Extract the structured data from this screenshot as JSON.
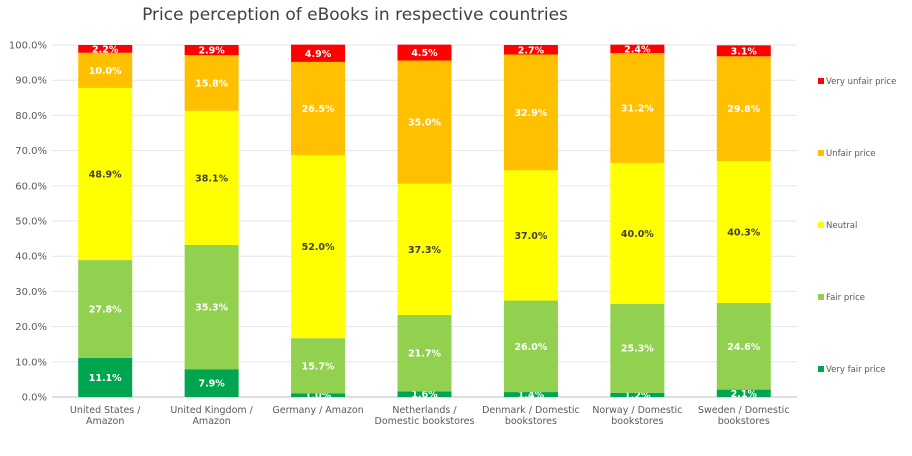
{
  "chart_data": {
    "type": "bar",
    "stacked": true,
    "title": "Price perception of eBooks in respective countries",
    "xlabel": "",
    "ylabel": "",
    "ylim": [
      0,
      100
    ],
    "yticks": [
      "0.0%",
      "10.0%",
      "20.0%",
      "30.0%",
      "40.0%",
      "50.0%",
      "60.0%",
      "70.0%",
      "80.0%",
      "90.0%",
      "100.0%"
    ],
    "grid": true,
    "legend_position": "right",
    "categories": [
      [
        "United States /",
        "Amazon"
      ],
      [
        "United Kingdom /",
        "Amazon"
      ],
      [
        "Germany / Amazon"
      ],
      [
        "Netherlands /",
        "Domestic bookstores"
      ],
      [
        "Denmark / Domestic",
        "bookstores"
      ],
      [
        "Norway / Domestic",
        "bookstores"
      ],
      [
        "Sweden / Domestic",
        "bookstores"
      ]
    ],
    "series": [
      {
        "name": "Very fair price",
        "color": "#00a550",
        "label_color": "#ffffff",
        "values": [
          11.1,
          7.9,
          1.0,
          1.6,
          1.4,
          1.2,
          2.1
        ],
        "labels": [
          "11.1%",
          "7.9%",
          "1.0%",
          "1.6%",
          "1.4%",
          "1.2%",
          "2.1%"
        ]
      },
      {
        "name": "Fair price",
        "color": "#92d050",
        "label_color": "#ffffff",
        "values": [
          27.8,
          35.3,
          15.7,
          21.7,
          26.0,
          25.3,
          24.6
        ],
        "labels": [
          "27.8%",
          "35.3%",
          "15.7%",
          "21.7%",
          "26.0%",
          "25.3%",
          "24.6%"
        ]
      },
      {
        "name": "Neutral",
        "color": "#ffff00",
        "label_color": "#404040",
        "values": [
          48.9,
          38.1,
          52.0,
          37.3,
          37.0,
          40.0,
          40.3
        ],
        "labels": [
          "48.9%",
          "38.1%",
          "52.0%",
          "37.3%",
          "37.0%",
          "40.0%",
          "40.3%"
        ]
      },
      {
        "name": "Unfair price",
        "color": "#ffc000",
        "label_color": "#ffffff",
        "values": [
          10.0,
          15.8,
          26.5,
          35.0,
          32.9,
          31.2,
          29.8
        ],
        "labels": [
          "10.0%",
          "15.8%",
          "26.5%",
          "35.0%",
          "32.9%",
          "31.2%",
          "29.8%"
        ]
      },
      {
        "name": "Very unfair price",
        "color": "#ff0000",
        "label_color": "#ffffff",
        "values": [
          2.2,
          2.9,
          4.9,
          4.5,
          2.7,
          2.4,
          3.1
        ],
        "labels": [
          "2.2%",
          "2.9%",
          "4.9%",
          "4.5%",
          "2.7%",
          "2.4%",
          "3.1%"
        ]
      }
    ]
  }
}
